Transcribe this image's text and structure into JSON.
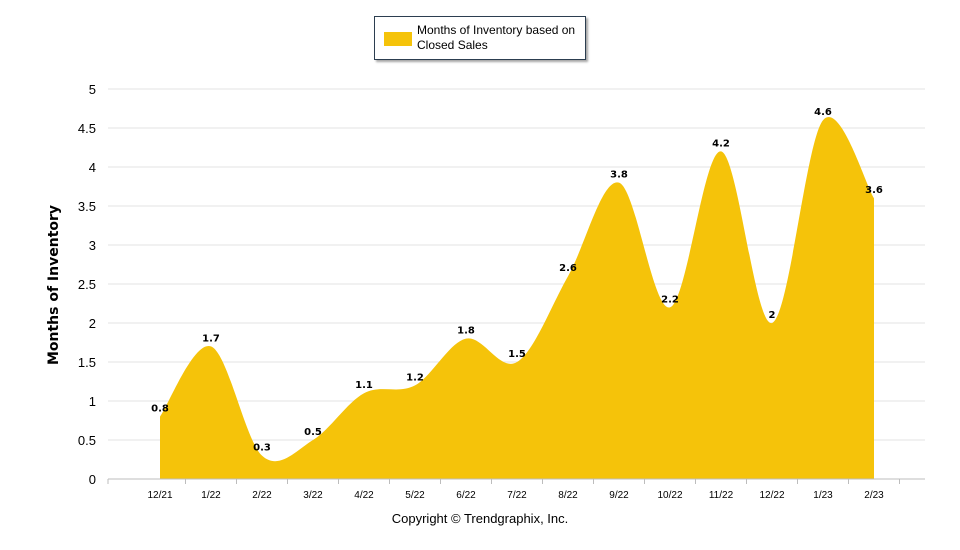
{
  "chart_data": {
    "type": "area",
    "categories": [
      "12/21",
      "1/22",
      "2/22",
      "3/22",
      "4/22",
      "5/22",
      "6/22",
      "7/22",
      "8/22",
      "9/22",
      "10/22",
      "11/22",
      "12/22",
      "1/23",
      "2/23"
    ],
    "series": [
      {
        "name": "Months of Inventory based on Closed Sales",
        "values": [
          0.8,
          1.7,
          0.3,
          0.5,
          1.1,
          1.2,
          1.8,
          1.5,
          2.6,
          3.8,
          2.2,
          4.2,
          2,
          4.6,
          3.6
        ],
        "data_labels": [
          "0.8",
          "1.7",
          "0.3",
          "0.5",
          "1.1",
          "1.2",
          "1.8",
          "1.5",
          "2.6",
          "3.8",
          "2.2",
          "4.2",
          "2",
          "4.6",
          "3.6"
        ],
        "color": "#f5c30a"
      }
    ],
    "ylabel": "Months of Inventory",
    "ylim": [
      0,
      5
    ],
    "yticks": [
      "0",
      "0.5",
      "1",
      "1.5",
      "2",
      "2.5",
      "3",
      "3.5",
      "4",
      "4.5",
      "5"
    ],
    "grid": true,
    "legend_position": "top-center"
  },
  "legend": {
    "label": "Months of Inventory based on Closed Sales"
  },
  "footer": {
    "copyright": "Copyright © Trendgraphix, Inc."
  }
}
